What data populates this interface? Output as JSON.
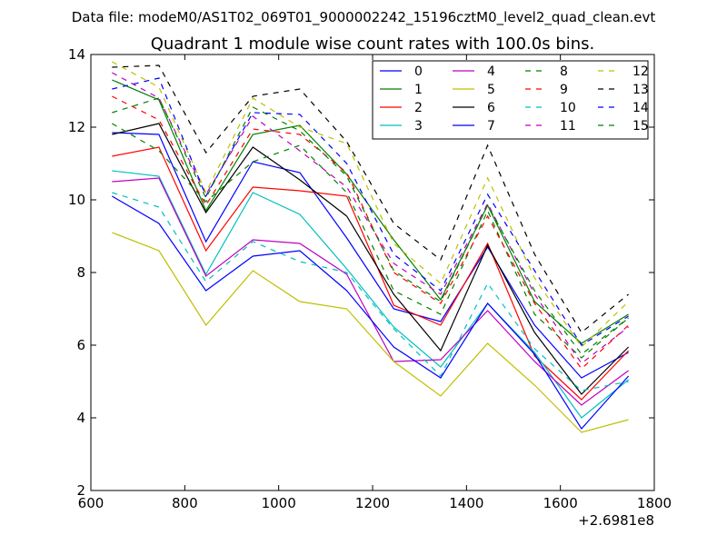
{
  "supertitle": "Data file: modeM0/AS1T02_069T01_9000002242_15196cztM0_level2_quad_clean.evt",
  "chart_data": {
    "type": "line",
    "title": "Quadrant 1 module wise count rates with 100.0s bins.",
    "xlabel": "",
    "ylabel": "",
    "x_offset_label": "+2.6981e8",
    "xlim": [
      600,
      1800
    ],
    "ylim": [
      2,
      14
    ],
    "x_ticks": [
      600,
      800,
      1000,
      1200,
      1400,
      1600,
      1800
    ],
    "y_ticks": [
      2,
      4,
      6,
      8,
      10,
      12,
      14
    ],
    "grid": false,
    "legend_position": "top-right",
    "legend_columns": 4,
    "x": [
      645,
      745,
      845,
      945,
      1045,
      1145,
      1245,
      1345,
      1445,
      1545,
      1645,
      1745
    ],
    "series": [
      {
        "name": "0",
        "color": "#0000ff",
        "dash": "solid",
        "values": [
          11.85,
          11.8,
          8.85,
          11.05,
          10.75,
          8.95,
          7.0,
          6.65,
          8.7,
          6.55,
          5.1,
          5.8
        ]
      },
      {
        "name": "1",
        "color": "#008000",
        "dash": "solid",
        "values": [
          13.3,
          12.75,
          9.7,
          11.8,
          12.05,
          10.7,
          8.9,
          7.25,
          9.85,
          7.2,
          6.05,
          6.85
        ]
      },
      {
        "name": "2",
        "color": "#ff0000",
        "dash": "solid",
        "values": [
          11.2,
          11.45,
          8.6,
          10.35,
          10.25,
          10.1,
          7.1,
          6.55,
          8.8,
          5.7,
          4.5,
          5.85
        ]
      },
      {
        "name": "3",
        "color": "#00bfbf",
        "dash": "solid",
        "values": [
          10.8,
          10.65,
          7.95,
          10.2,
          9.6,
          8.1,
          6.5,
          5.4,
          7.15,
          5.8,
          4.0,
          5.05
        ]
      },
      {
        "name": "4",
        "color": "#bf00bf",
        "dash": "solid",
        "values": [
          10.5,
          10.6,
          7.9,
          8.9,
          8.8,
          7.95,
          5.55,
          5.6,
          6.95,
          5.55,
          4.35,
          5.3
        ]
      },
      {
        "name": "5",
        "color": "#bfbf00",
        "dash": "solid",
        "values": [
          9.1,
          8.6,
          6.55,
          8.05,
          7.2,
          7.0,
          5.55,
          4.6,
          6.05,
          4.9,
          3.6,
          3.95
        ]
      },
      {
        "name": "6",
        "color": "#000000",
        "dash": "solid",
        "values": [
          11.8,
          12.1,
          9.65,
          11.45,
          10.55,
          9.55,
          7.4,
          5.85,
          8.75,
          6.35,
          4.65,
          5.95
        ]
      },
      {
        "name": "7",
        "color": "#0000ff",
        "dash": "solid",
        "values": [
          10.1,
          9.35,
          7.5,
          8.45,
          8.6,
          7.5,
          5.95,
          5.1,
          7.15,
          5.75,
          3.7,
          5.15
        ]
      },
      {
        "name": "8",
        "color": "#008000",
        "dash": "dashed",
        "values": [
          12.1,
          11.35,
          9.95,
          11.05,
          11.5,
          10.2,
          7.5,
          6.85,
          9.7,
          6.85,
          5.65,
          6.75
        ]
      },
      {
        "name": "9",
        "color": "#ff0000",
        "dash": "dashed",
        "values": [
          12.85,
          12.2,
          9.85,
          11.95,
          11.8,
          10.75,
          8.0,
          7.15,
          9.55,
          7.15,
          5.35,
          6.55
        ]
      },
      {
        "name": "10",
        "color": "#00bfbf",
        "dash": "dashed",
        "values": [
          10.2,
          9.8,
          7.75,
          8.85,
          8.3,
          8.0,
          6.45,
          5.15,
          7.7,
          5.9,
          4.75,
          5.0
        ]
      },
      {
        "name": "11",
        "color": "#bf00bf",
        "dash": "dashed",
        "values": [
          13.5,
          12.8,
          10.15,
          12.3,
          11.35,
          10.35,
          8.25,
          7.4,
          9.9,
          7.4,
          5.5,
          6.5
        ]
      },
      {
        "name": "12",
        "color": "#bfbf00",
        "dash": "dashed",
        "values": [
          13.8,
          13.1,
          10.2,
          12.8,
          12.0,
          11.55,
          8.8,
          7.7,
          10.6,
          7.85,
          5.95,
          7.2
        ]
      },
      {
        "name": "13",
        "color": "#000000",
        "dash": "dashed",
        "values": [
          13.65,
          13.7,
          11.3,
          12.85,
          13.05,
          11.6,
          9.35,
          8.35,
          11.5,
          8.5,
          6.35,
          7.4
        ]
      },
      {
        "name": "14",
        "color": "#0000ff",
        "dash": "dashed",
        "values": [
          13.05,
          13.35,
          10.1,
          12.4,
          12.35,
          11.0,
          8.5,
          7.5,
          10.15,
          8.05,
          6.0,
          6.8
        ]
      },
      {
        "name": "15",
        "color": "#008000",
        "dash": "dashed",
        "values": [
          12.4,
          12.8,
          10.05,
          12.55,
          11.9,
          10.65,
          8.05,
          7.2,
          9.85,
          7.5,
          5.75,
          6.75
        ]
      }
    ]
  }
}
